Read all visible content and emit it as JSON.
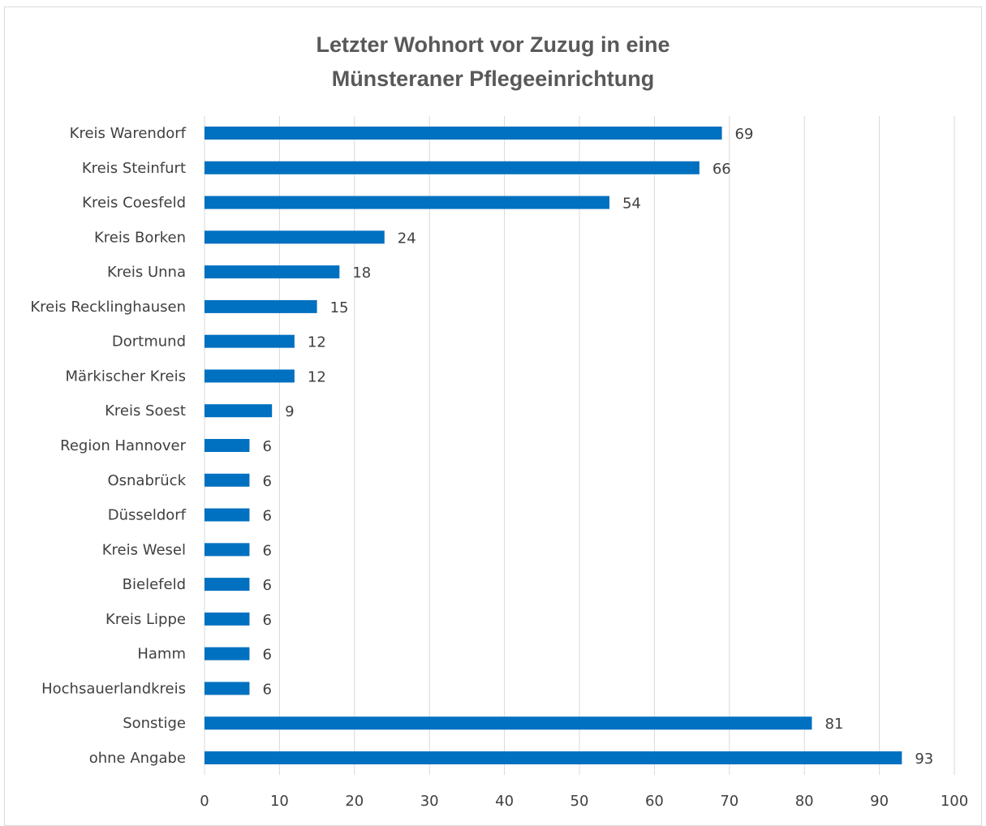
{
  "chart_data": {
    "type": "bar",
    "orientation": "horizontal",
    "title_lines": [
      "Letzter Wohnort vor Zuzug in eine",
      "Münsteraner Pflegeeinrichtung"
    ],
    "categories": [
      "Kreis Warendorf",
      "Kreis Steinfurt",
      "Kreis Coesfeld",
      "Kreis Borken",
      "Kreis Unna",
      "Kreis Recklinghausen",
      "Dortmund",
      "Märkischer Kreis",
      "Kreis Soest",
      "Region Hannover",
      "Osnabrück",
      "Düsseldorf",
      "Kreis Wesel",
      "Bielefeld",
      "Kreis Lippe",
      "Hamm",
      "Hochsauerlandkreis",
      "Sonstige",
      "ohne Angabe"
    ],
    "values": [
      69,
      66,
      54,
      24,
      18,
      15,
      12,
      12,
      9,
      6,
      6,
      6,
      6,
      6,
      6,
      6,
      6,
      81,
      93
    ],
    "xlim": [
      0,
      100
    ],
    "xticks": [
      0,
      10,
      20,
      30,
      40,
      50,
      60,
      70,
      80,
      90,
      100
    ],
    "grid": "vertical",
    "legend": "none",
    "bar_color": "#0070c0"
  }
}
